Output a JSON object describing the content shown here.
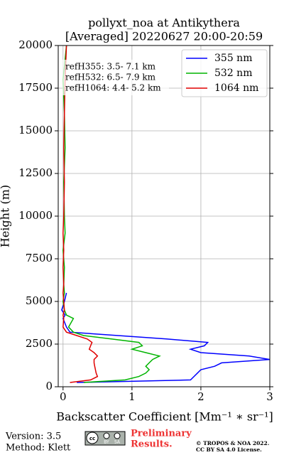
{
  "chart_data": {
    "type": "line",
    "title": [
      "pollyxt_noa at Antikythera",
      "[Averaged] 20220627 20:00-20:59"
    ],
    "xlabel": "Backscatter Coefficient [Mm⁻¹ ∗ sr⁻¹]",
    "ylabel": "Height (m)",
    "y": [
      250,
      400,
      600,
      800,
      1000,
      1200,
      1400,
      1600,
      1800,
      2000,
      2200,
      2400,
      2600,
      2800,
      3000,
      3200,
      3500,
      4000,
      4200,
      4500,
      5000,
      5500,
      6000,
      7000,
      8000,
      9000,
      10000,
      12000,
      14000,
      16000,
      18000,
      20000
    ],
    "series": [
      {
        "name": "355 nm",
        "color": "#0000ff",
        "values": [
          0.2,
          1.85,
          1.9,
          1.95,
          2.0,
          2.2,
          2.3,
          3.0,
          2.7,
          2.0,
          1.85,
          2.05,
          2.1,
          1.5,
          0.8,
          0.1,
          0.05,
          0.0,
          0.03,
          -0.02,
          0.02,
          0.05,
          null,
          null,
          null,
          null,
          null,
          null,
          null,
          null,
          null,
          null
        ]
      },
      {
        "name": "532 nm",
        "color": "#00b400",
        "values": [
          0.3,
          0.9,
          1.1,
          1.2,
          1.25,
          1.2,
          1.25,
          1.3,
          1.4,
          1.2,
          1.0,
          1.15,
          1.1,
          0.7,
          0.3,
          0.15,
          0.08,
          0.15,
          0.05,
          0.02,
          0.0,
          0.02,
          0.01,
          0.02,
          0.0,
          0.03,
          0.02,
          0.01,
          0.03,
          0.02,
          0.0,
          0.05
        ]
      },
      {
        "name": "1064 nm",
        "color": "#e00000",
        "values": [
          0.1,
          0.4,
          0.5,
          0.48,
          0.47,
          0.46,
          0.45,
          0.45,
          0.5,
          0.45,
          0.38,
          0.4,
          0.42,
          0.35,
          0.2,
          0.05,
          0.0,
          0.01,
          0.0,
          0.02,
          0.01,
          0.0,
          0.01,
          0.0,
          0.01,
          0.0,
          0.01,
          0.02,
          0.01,
          0.02,
          0.03,
          0.05
        ]
      }
    ],
    "xlim": [
      -0.07,
      3
    ],
    "xticks": [
      0,
      1,
      2,
      3
    ],
    "ylim": [
      0,
      20000
    ],
    "yticks": [
      0,
      2500,
      5000,
      7500,
      10000,
      12500,
      15000,
      17500,
      20000
    ],
    "grid": true,
    "legend": "upper right",
    "annotations": [
      "refH355:  3.5- 7.1 km",
      "refH532:  6.5- 7.9 km",
      "refH1064:  4.4- 5.2 km"
    ]
  },
  "footer": {
    "version": "Version: 3.5",
    "method": "Method: Klett",
    "badge": [
      "BY",
      "SA"
    ],
    "preliminary": [
      "Preliminary",
      "Results."
    ],
    "copyright": [
      "© TROPOS & NOA 2022.",
      "CC BY SA 4.0 License."
    ]
  }
}
